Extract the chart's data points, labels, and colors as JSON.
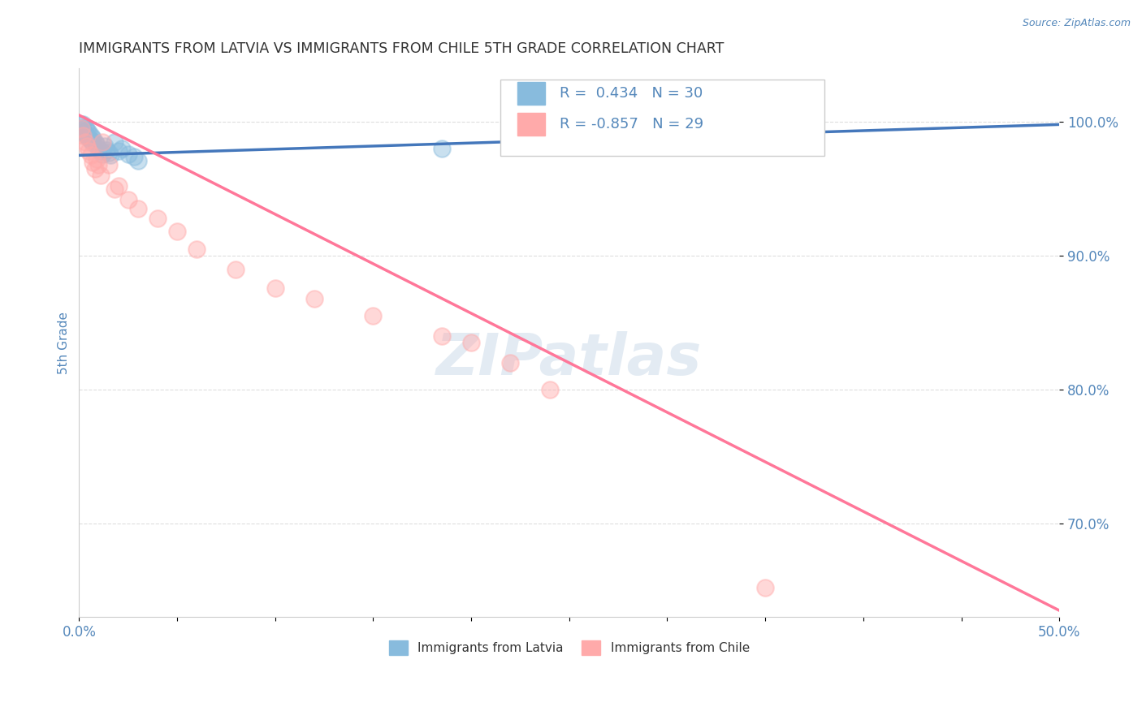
{
  "title": "IMMIGRANTS FROM LATVIA VS IMMIGRANTS FROM CHILE 5TH GRADE CORRELATION CHART",
  "source": "Source: ZipAtlas.com",
  "ylabel": "5th Grade",
  "xlim": [
    0.0,
    0.5
  ],
  "ylim": [
    0.63,
    1.04
  ],
  "yticks": [
    0.7,
    0.8,
    0.9,
    1.0
  ],
  "ytick_labels": [
    "70.0%",
    "80.0%",
    "90.0%",
    "100.0%"
  ],
  "xticks": [
    0.0,
    0.05,
    0.1,
    0.15,
    0.2,
    0.25,
    0.3,
    0.35,
    0.4,
    0.45,
    0.5
  ],
  "xtick_labels": [
    "0.0%",
    "",
    "",
    "",
    "",
    "",
    "",
    "",
    "",
    "",
    "50.0%"
  ],
  "blue_R": 0.434,
  "blue_N": 30,
  "pink_R": -0.857,
  "pink_N": 29,
  "blue_scatter_x": [
    0.001,
    0.001,
    0.002,
    0.002,
    0.003,
    0.003,
    0.004,
    0.004,
    0.005,
    0.005,
    0.006,
    0.006,
    0.007,
    0.007,
    0.008,
    0.009,
    0.01,
    0.011,
    0.012,
    0.013,
    0.014,
    0.015,
    0.016,
    0.018,
    0.02,
    0.022,
    0.025,
    0.028,
    0.03,
    0.185
  ],
  "blue_scatter_y": [
    0.998,
    0.995,
    0.998,
    0.993,
    0.996,
    0.991,
    0.994,
    0.989,
    0.992,
    0.988,
    0.99,
    0.986,
    0.988,
    0.984,
    0.985,
    0.983,
    0.98,
    0.978,
    0.976,
    0.982,
    0.979,
    0.977,
    0.975,
    0.985,
    0.978,
    0.98,
    0.976,
    0.974,
    0.971,
    0.98
  ],
  "pink_scatter_x": [
    0.001,
    0.002,
    0.003,
    0.004,
    0.005,
    0.006,
    0.007,
    0.008,
    0.009,
    0.01,
    0.011,
    0.012,
    0.015,
    0.018,
    0.02,
    0.025,
    0.03,
    0.04,
    0.05,
    0.06,
    0.08,
    0.1,
    0.12,
    0.15,
    0.185,
    0.2,
    0.22,
    0.24,
    0.35
  ],
  "pink_scatter_y": [
    0.995,
    0.99,
    0.985,
    0.982,
    0.978,
    0.975,
    0.97,
    0.965,
    0.972,
    0.968,
    0.96,
    0.985,
    0.968,
    0.95,
    0.952,
    0.942,
    0.935,
    0.928,
    0.918,
    0.905,
    0.89,
    0.876,
    0.868,
    0.855,
    0.84,
    0.835,
    0.82,
    0.8,
    0.652
  ],
  "blue_line_x": [
    0.0,
    0.5
  ],
  "blue_line_y": [
    0.975,
    0.998
  ],
  "pink_line_x": [
    0.0,
    0.5
  ],
  "pink_line_y": [
    1.005,
    0.635
  ],
  "blue_scatter_color": "#88BBDD",
  "pink_scatter_color": "#FFAAAA",
  "blue_line_color": "#4477BB",
  "pink_line_color": "#FF7799",
  "legend_blue_color": "#88BBDD",
  "legend_pink_color": "#FFAAAA",
  "watermark_text": "ZIPatlas",
  "watermark_color": "#C8D8E8",
  "title_color": "#333333",
  "axis_label_color": "#5588BB",
  "tick_color": "#5588BB",
  "grid_color": "#DDDDDD",
  "legend_text_color": "#5588BB",
  "source_color": "#5588BB"
}
